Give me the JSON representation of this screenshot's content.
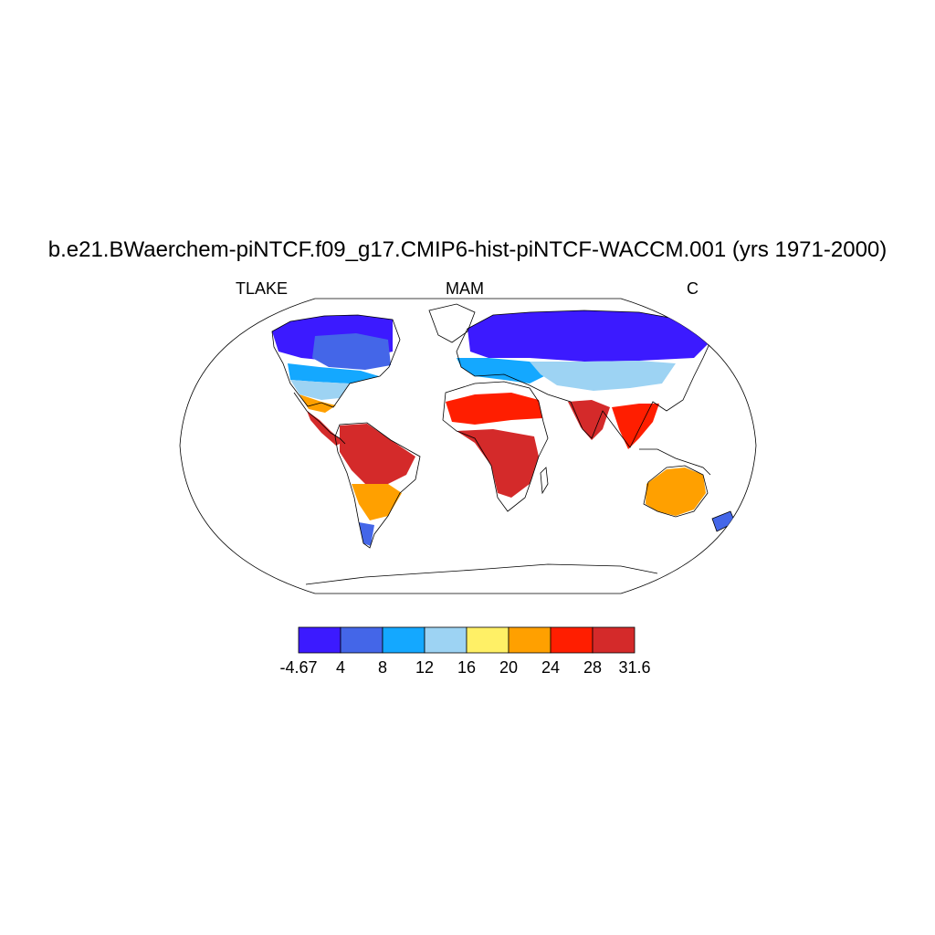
{
  "title": "b.e21.BWaerchem-piNTCF.f09_g17.CMIP6-hist-piNTCF-WACCM.001 (yrs 1971-2000)",
  "subtitle_left": "TLAKE",
  "subtitle_center": "MAM",
  "subtitle_right": "C",
  "colorbar": {
    "colors": [
      "#3c1aff",
      "#4466e8",
      "#14a8ff",
      "#9dd3f3",
      "#fff066",
      "#ffa000",
      "#ff1e00",
      "#d42a2a"
    ],
    "tick_labels": [
      "-4.67",
      "4",
      "8",
      "12",
      "16",
      "20",
      "24",
      "28",
      "31.6"
    ]
  },
  "map": {
    "projection": "robinson",
    "outline_color": "#000000",
    "field": [
      {
        "region": "north-canada-alaska",
        "class": 0
      },
      {
        "region": "hudson-labrador",
        "class": 1
      },
      {
        "region": "great-plains-great-lakes",
        "class": 2
      },
      {
        "region": "central-usa",
        "class": 3
      },
      {
        "region": "gulf-coast-mexico",
        "class": 5
      },
      {
        "region": "central-america-caribbean",
        "class": 7
      },
      {
        "region": "amazon",
        "class": 7
      },
      {
        "region": "southern-brazil",
        "class": 5
      },
      {
        "region": "patagonia",
        "class": 1
      },
      {
        "region": "scandinavia-siberia",
        "class": 0
      },
      {
        "region": "europe",
        "class": 2
      },
      {
        "region": "central-asia",
        "class": 3
      },
      {
        "region": "sahel",
        "class": 6
      },
      {
        "region": "central-africa",
        "class": 7
      },
      {
        "region": "south-asia",
        "class": 7
      },
      {
        "region": "southeast-asia",
        "class": 6
      },
      {
        "region": "australia-coast",
        "class": 5
      },
      {
        "region": "new-zealand",
        "class": 1
      }
    ]
  }
}
